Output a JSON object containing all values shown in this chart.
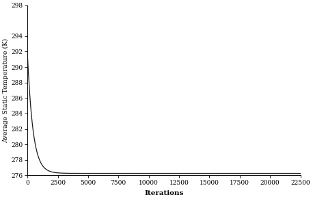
{
  "title": "",
  "xlabel": "Iterations",
  "ylabel": "Average Static Temperature (K)",
  "xlim": [
    0,
    22500
  ],
  "ylim": [
    276,
    298
  ],
  "yticks": [
    276,
    278,
    280,
    282,
    284,
    286,
    288,
    290,
    292,
    294,
    298
  ],
  "xticks": [
    0,
    2500,
    5000,
    7500,
    10000,
    12500,
    15000,
    17500,
    20000,
    22500
  ],
  "line_color": "#1a1a1a",
  "line_width": 0.9,
  "start_temp": 291.8,
  "end_temp": 276.25,
  "decay_rate": 0.0022,
  "total_iterations": 22500,
  "background_color": "#ffffff",
  "tick_label_fontsize": 6.5,
  "axis_label_fontsize": 7.5,
  "ylabel_fontsize": 6.8
}
